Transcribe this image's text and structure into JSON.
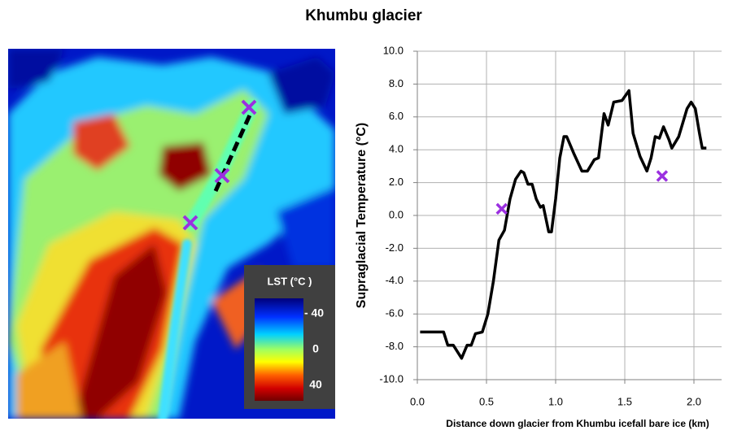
{
  "chart_data": {
    "type": "line",
    "title": "Khumbu glacier",
    "x_label": "Distance down glacier from Khumbu icefall bare ice (km)",
    "y_label": "Supraglacial Temperature (°C)",
    "xlim": [
      0,
      2.2
    ],
    "ylim": [
      -10,
      10
    ],
    "xticks": [
      {
        "value": 0,
        "label": "0.0"
      },
      {
        "value": 0.5,
        "label": "0.5"
      },
      {
        "value": 1,
        "label": "1.0"
      },
      {
        "value": 1.5,
        "label": "1.5"
      },
      {
        "value": 2,
        "label": "2.0"
      }
    ],
    "yticks": [
      {
        "value": -10,
        "label": "-10.0"
      },
      {
        "value": -8,
        "label": "-8.0"
      },
      {
        "value": -6,
        "label": "-6.0"
      },
      {
        "value": -4,
        "label": "-4.0"
      },
      {
        "value": -2,
        "label": "-2.0"
      },
      {
        "value": 0,
        "label": "0.0"
      },
      {
        "value": 2,
        "label": "2.0"
      },
      {
        "value": 4,
        "label": "4.0"
      },
      {
        "value": 6,
        "label": "6.0"
      },
      {
        "value": 8,
        "label": "8.0"
      },
      {
        "value": 10,
        "label": "10.0"
      }
    ],
    "grid": true,
    "series": [
      {
        "color": "#000000",
        "marker": "none",
        "x": [
          0.02,
          0.19,
          0.22,
          0.26,
          0.32,
          0.36,
          0.39,
          0.42,
          0.47,
          0.51,
          0.55,
          0.59,
          0.63,
          0.67,
          0.71,
          0.75,
          0.77,
          0.8,
          0.83,
          0.86,
          0.89,
          0.91,
          0.95,
          0.97,
          1.0,
          1.03,
          1.06,
          1.08,
          1.13,
          1.19,
          1.23,
          1.28,
          1.31,
          1.35,
          1.38,
          1.42,
          1.48,
          1.53,
          1.56,
          1.61,
          1.66,
          1.69,
          1.72,
          1.75,
          1.78,
          1.82,
          1.84,
          1.89,
          1.95,
          1.98,
          2.01,
          2.04,
          2.06,
          2.09
        ],
        "values": [
          -7.1,
          -7.1,
          -7.9,
          -7.9,
          -8.7,
          -7.9,
          -7.9,
          -7.2,
          -7.1,
          -6.0,
          -4.0,
          -1.5,
          -0.9,
          1.0,
          2.2,
          2.7,
          2.6,
          1.9,
          1.9,
          1.0,
          0.5,
          0.6,
          -1.0,
          -1.0,
          1.0,
          3.5,
          4.8,
          4.8,
          3.8,
          2.7,
          2.7,
          3.4,
          3.5,
          6.2,
          5.5,
          6.9,
          7.0,
          7.6,
          5.0,
          3.6,
          2.7,
          3.5,
          4.8,
          4.7,
          5.4,
          4.6,
          4.1,
          4.8,
          6.5,
          6.9,
          6.5,
          5.0,
          4.1,
          4.1
        ]
      },
      {
        "color": "#9b30e0",
        "marker": "x",
        "x": [
          0.61,
          1.77
        ],
        "values": [
          0.4,
          2.4
        ]
      }
    ]
  },
  "image_panel": {
    "legend_title": "LST (°C )",
    "colorbar_labels": [
      "- 40",
      "0",
      "40"
    ]
  }
}
